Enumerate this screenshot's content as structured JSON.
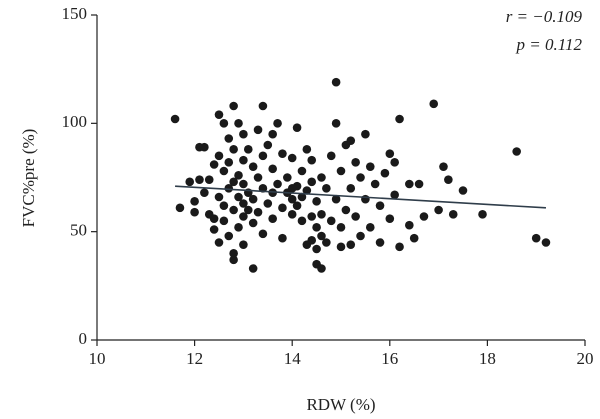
{
  "chart_data": {
    "type": "scatter",
    "x_label": "RDW (%)",
    "y_label": "FVC%pre (%)",
    "annotations": [
      "r = −0.109",
      "p = 0.112"
    ],
    "xlim": [
      10,
      20
    ],
    "xticks": [
      10,
      12,
      14,
      16,
      18,
      20
    ],
    "ylim": [
      0,
      150
    ],
    "yticks": [
      0,
      50,
      100,
      150
    ],
    "color": "#1a1a1a",
    "trend": {
      "color": "#2f3d4a",
      "x": [
        11.6,
        19.2
      ],
      "y": [
        71,
        61
      ]
    },
    "x": [
      11.6,
      11.7,
      11.9,
      12.0,
      12.0,
      12.1,
      12.1,
      12.2,
      12.2,
      12.3,
      12.3,
      12.4,
      12.4,
      12.4,
      12.5,
      12.5,
      12.5,
      12.5,
      12.6,
      12.6,
      12.6,
      12.6,
      12.7,
      12.7,
      12.7,
      12.7,
      12.8,
      12.8,
      12.8,
      12.8,
      12.8,
      12.8,
      12.9,
      12.9,
      12.9,
      12.9,
      13.0,
      13.0,
      13.0,
      13.0,
      13.0,
      13.0,
      13.1,
      13.1,
      13.1,
      13.2,
      13.2,
      13.2,
      13.2,
      13.3,
      13.3,
      13.3,
      13.4,
      13.4,
      13.4,
      13.4,
      13.5,
      13.5,
      13.6,
      13.6,
      13.6,
      13.6,
      13.7,
      13.7,
      13.8,
      13.8,
      13.8,
      13.9,
      13.9,
      14.0,
      14.0,
      14.0,
      14.0,
      14.1,
      14.1,
      14.1,
      14.2,
      14.2,
      14.2,
      14.3,
      14.3,
      14.3,
      14.4,
      14.4,
      14.4,
      14.4,
      14.5,
      14.5,
      14.5,
      14.5,
      14.6,
      14.6,
      14.6,
      14.6,
      14.7,
      14.7,
      14.8,
      14.8,
      14.9,
      14.9,
      14.9,
      15.0,
      15.0,
      15.0,
      15.1,
      15.1,
      15.2,
      15.2,
      15.2,
      15.3,
      15.3,
      15.4,
      15.4,
      15.5,
      15.5,
      15.6,
      15.6,
      15.7,
      15.8,
      15.8,
      15.9,
      16.0,
      16.0,
      16.1,
      16.1,
      16.2,
      16.2,
      16.4,
      16.4,
      16.5,
      16.6,
      16.7,
      16.9,
      17.0,
      17.1,
      17.2,
      17.3,
      17.5,
      17.9,
      18.6,
      19.0,
      19.2
    ],
    "values": [
      102,
      61,
      73,
      64,
      59,
      89,
      74,
      89,
      68,
      74,
      58,
      81,
      56,
      51,
      104,
      85,
      66,
      45,
      100,
      78,
      62,
      55,
      93,
      82,
      70,
      48,
      108,
      88,
      73,
      60,
      40,
      37,
      100,
      76,
      66,
      52,
      95,
      83,
      72,
      63,
      57,
      44,
      88,
      68,
      60,
      80,
      65,
      54,
      33,
      97,
      75,
      59,
      108,
      85,
      70,
      49,
      90,
      63,
      95,
      79,
      68,
      56,
      100,
      72,
      86,
      61,
      47,
      75,
      68,
      84,
      70,
      58,
      65,
      98,
      71,
      62,
      78,
      66,
      55,
      88,
      69,
      44,
      83,
      73,
      57,
      46,
      64,
      52,
      42,
      35,
      75,
      58,
      48,
      33,
      70,
      45,
      85,
      55,
      119,
      100,
      65,
      78,
      52,
      43,
      90,
      60,
      92,
      70,
      44,
      82,
      57,
      75,
      48,
      95,
      65,
      80,
      52,
      72,
      62,
      45,
      77,
      86,
      56,
      82,
      67,
      102,
      43,
      72,
      53,
      47,
      72,
      57,
      109,
      60,
      80,
      74,
      58,
      69,
      58,
      87,
      47,
      45
    ]
  }
}
